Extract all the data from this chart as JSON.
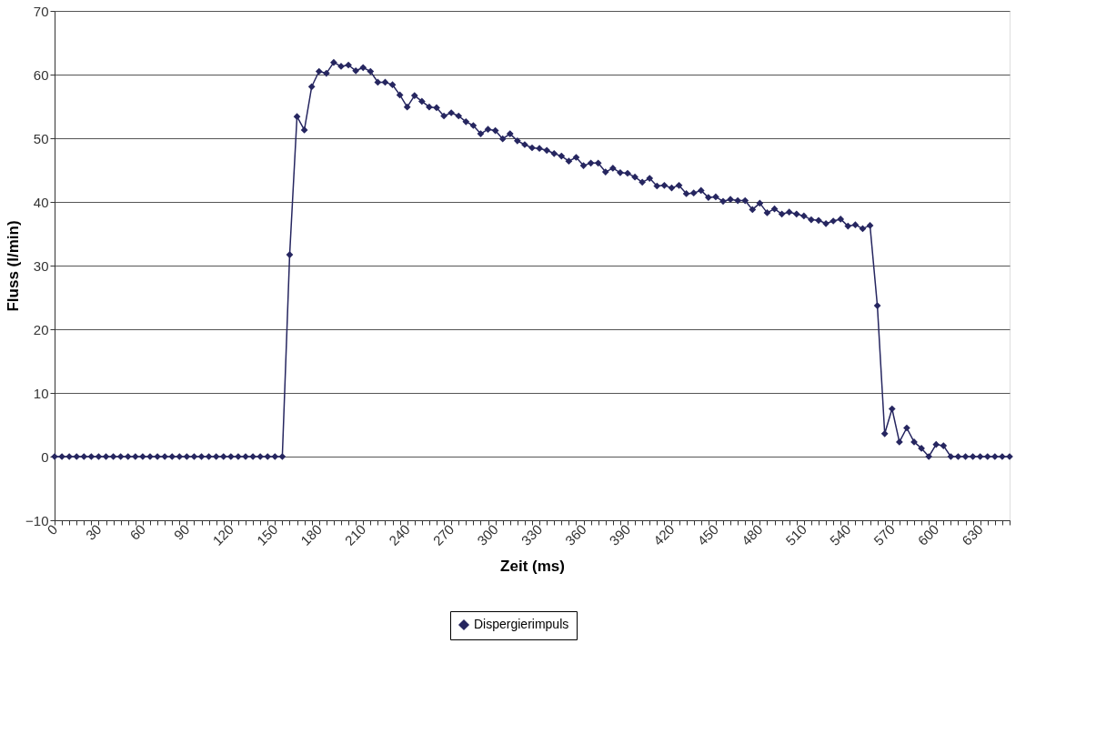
{
  "chart_data": {
    "type": "line",
    "xlabel": "Zeit (ms)",
    "ylabel": "Fluss (l/min)",
    "categories": [
      "0",
      null,
      null,
      null,
      null,
      null,
      "30",
      null,
      null,
      null,
      null,
      null,
      "60",
      null,
      null,
      null,
      null,
      null,
      "90",
      null,
      null,
      null,
      null,
      null,
      "120",
      null,
      null,
      null,
      null,
      null,
      "150",
      null,
      null,
      null,
      null,
      null,
      "180",
      null,
      null,
      null,
      null,
      null,
      "210",
      null,
      null,
      null,
      null,
      null,
      "240",
      null,
      null,
      null,
      null,
      null,
      "270",
      null,
      null,
      null,
      null,
      null,
      "300",
      null,
      null,
      null,
      null,
      null,
      "330",
      null,
      null,
      null,
      null,
      null,
      "360",
      null,
      null,
      null,
      null,
      null,
      "390",
      null,
      null,
      null,
      null,
      null,
      "420",
      null,
      null,
      null,
      null,
      null,
      "450",
      null,
      null,
      null,
      null,
      null,
      "480",
      null,
      null,
      null,
      null,
      null,
      "510",
      null,
      null,
      null,
      null,
      null,
      "540",
      null,
      null,
      null,
      null,
      null,
      "570",
      null,
      null,
      null,
      null,
      null,
      "600",
      null,
      null,
      null,
      null,
      null,
      "630",
      null,
      null,
      null,
      null
    ],
    "series": [
      {
        "name": "Dispergierimpuls",
        "color": "#262660",
        "values": [
          0,
          0,
          0,
          0,
          0,
          0,
          0,
          0,
          0,
          0,
          0,
          0,
          0,
          0,
          0,
          0,
          0,
          0,
          0,
          0,
          0,
          0,
          0,
          0,
          0,
          0,
          0,
          0,
          0,
          0,
          0,
          0,
          31.7,
          53.4,
          51.3,
          58.1,
          60.5,
          60.2,
          61.9,
          61.3,
          61.5,
          60.6,
          61.1,
          60.5,
          58.8,
          58.8,
          58.4,
          56.8,
          54.9,
          56.7,
          55.8,
          54.9,
          54.8,
          53.5,
          54.0,
          53.5,
          52.6,
          52.0,
          50.7,
          51.4,
          51.2,
          49.9,
          50.7,
          49.6,
          49.0,
          48.5,
          48.4,
          48.1,
          47.6,
          47.2,
          46.4,
          47.0,
          45.7,
          46.1,
          46.1,
          44.7,
          45.3,
          44.6,
          44.5,
          43.9,
          43.1,
          43.7,
          42.5,
          42.6,
          42.2,
          42.6,
          41.3,
          41.4,
          41.8,
          40.7,
          40.8,
          40.1,
          40.4,
          40.2,
          40.2,
          38.8,
          39.8,
          38.3,
          38.9,
          38.1,
          38.4,
          38.1,
          37.8,
          37.2,
          37.1,
          36.6,
          37.0,
          37.3,
          36.2,
          36.4,
          35.8,
          36.3,
          23.7,
          3.6,
          7.5,
          2.3,
          4.5,
          2.3,
          1.3,
          0,
          1.9,
          1.7,
          0,
          0,
          0,
          0,
          0,
          0,
          0,
          0,
          0
        ]
      }
    ],
    "ylim": [
      -10,
      70
    ],
    "yticks": [
      -10,
      0,
      10,
      20,
      30,
      40,
      50,
      60,
      70
    ],
    "grid": "y",
    "legend": "bottom",
    "marker": "diamond",
    "line_style": "solid"
  }
}
